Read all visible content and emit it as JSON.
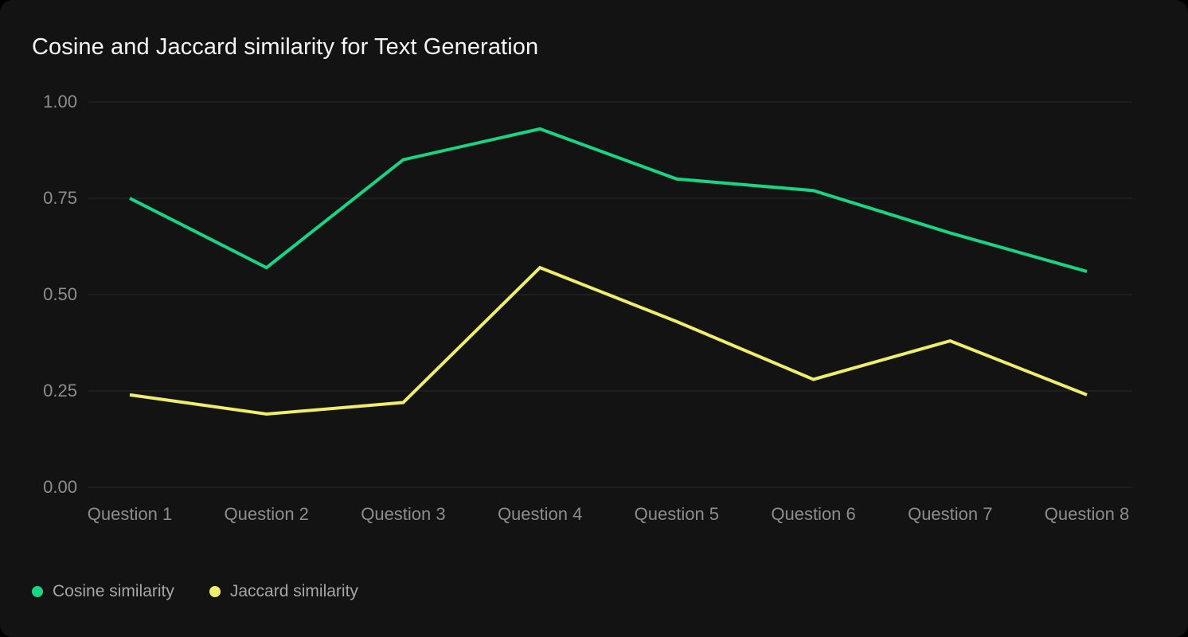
{
  "card": {
    "title": "Cosine and Jaccard similarity for Text Generation"
  },
  "chart_data": {
    "type": "line",
    "title": "Cosine and Jaccard similarity for Text Generation",
    "categories": [
      "Question 1",
      "Question 2",
      "Question 3",
      "Question 4",
      "Question 5",
      "Question 6",
      "Question 7",
      "Question 8"
    ],
    "series": [
      {
        "name": "Cosine similarity",
        "color": "#1ad485",
        "values": [
          0.75,
          0.57,
          0.85,
          0.93,
          0.8,
          0.77,
          0.66,
          0.56
        ]
      },
      {
        "name": "Jaccard similarity",
        "color": "#f0ed6d",
        "values": [
          0.24,
          0.19,
          0.22,
          0.57,
          0.43,
          0.28,
          0.38,
          0.24
        ]
      }
    ],
    "xlabel": "",
    "ylabel": "",
    "ylim": [
      0.0,
      1.0
    ],
    "yticks": [
      0.0,
      0.25,
      0.5,
      0.75,
      1.0
    ],
    "ytick_labels": [
      "0.00",
      "0.25",
      "0.50",
      "0.75",
      "1.00"
    ],
    "grid": "horizontal",
    "legend_position": "bottom-left"
  },
  "colors": {
    "page_bg": "#000000",
    "card_bg": "#131313",
    "grid_line": "#2a2a2a",
    "tick_text": "#8d8d8d",
    "title_text": "#f4f4f4",
    "legend_text": "#a6a6a6"
  }
}
